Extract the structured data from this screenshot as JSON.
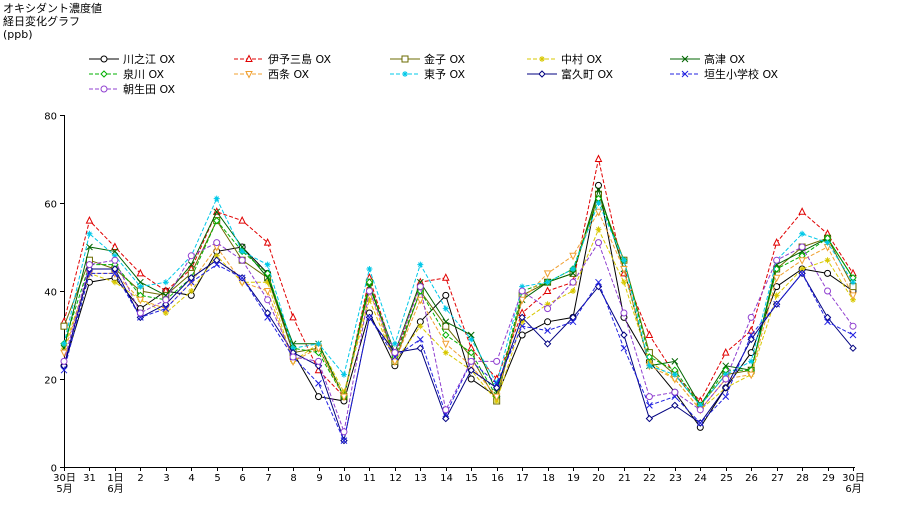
{
  "chart_data": {
    "type": "line",
    "title": "オキシダント濃度値",
    "subtitle": "経日変化グラフ",
    "ylabel": "(ppb)",
    "xlabel": "",
    "ylim": [
      0,
      80
    ],
    "yticks": [
      0,
      20,
      40,
      60,
      80
    ],
    "grid": false,
    "legend_position": "top",
    "categories": [
      "30日\n5月",
      "31",
      "1日\n6月",
      "2",
      "3",
      "4",
      "5",
      "6",
      "7",
      "8",
      "9",
      "10",
      "11",
      "12",
      "13",
      "14",
      "15",
      "16",
      "17",
      "18",
      "19",
      "20",
      "21",
      "22",
      "23",
      "24",
      "25",
      "26",
      "27",
      "28",
      "29",
      "30日\n6月"
    ],
    "series": [
      {
        "name": "川之江 OX",
        "color": "#000000",
        "marker": "circle",
        "dash": "solid",
        "values": [
          23,
          42,
          43,
          36,
          40,
          39,
          49,
          50,
          44,
          26,
          16,
          15,
          35,
          23,
          33,
          39,
          20,
          16,
          30,
          33,
          34,
          64,
          34,
          24,
          17,
          9,
          18,
          26,
          41,
          45,
          44,
          40
        ]
      },
      {
        "name": "伊予三島 OX",
        "color": "#e00000",
        "marker": "triangle",
        "dash": "dash",
        "values": [
          33,
          56,
          50,
          44,
          40,
          45,
          58,
          56,
          51,
          34,
          22,
          16,
          43,
          25,
          42,
          43,
          27,
          20,
          35,
          40,
          42,
          70,
          44,
          30,
          21,
          15,
          26,
          31,
          51,
          58,
          53,
          44
        ]
      },
      {
        "name": "金子 OX",
        "color": "#6b6b00",
        "marker": "square",
        "dash": "solid",
        "values": [
          32,
          47,
          45,
          40,
          39,
          44,
          56,
          47,
          43,
          26,
          27,
          16,
          42,
          24,
          40,
          32,
          25,
          15,
          39,
          42,
          44,
          62,
          47,
          26,
          21,
          14,
          21,
          22,
          45,
          50,
          52,
          41
        ]
      },
      {
        "name": "中村 OX",
        "color": "#d8c800",
        "marker": "star",
        "dash": "dash",
        "values": [
          27,
          44,
          42,
          38,
          35,
          40,
          48,
          42,
          42,
          24,
          28,
          17,
          38,
          24,
          32,
          26,
          22,
          15,
          33,
          37,
          40,
          54,
          42,
          24,
          20,
          13,
          18,
          21,
          39,
          45,
          47,
          38
        ]
      },
      {
        "name": "高津 OX",
        "color": "#006400",
        "marker": "x",
        "dash": "solid",
        "values": [
          27,
          50,
          49,
          42,
          39,
          46,
          58,
          50,
          43,
          28,
          28,
          16,
          41,
          26,
          42,
          33,
          30,
          17,
          38,
          42,
          44,
          63,
          45,
          23,
          24,
          14,
          23,
          22,
          46,
          49,
          52,
          43
        ]
      },
      {
        "name": "泉川 OX",
        "color": "#00b000",
        "marker": "diamond",
        "dash": "dash",
        "values": [
          28,
          46,
          46,
          39,
          38,
          43,
          56,
          49,
          44,
          27,
          26,
          16,
          42,
          25,
          40,
          30,
          26,
          16,
          40,
          42,
          45,
          61,
          47,
          25,
          22,
          14,
          22,
          22,
          45,
          48,
          52,
          43
        ]
      },
      {
        "name": "西条 OX",
        "color": "#f0a030",
        "marker": "triangle-down",
        "dash": "dash",
        "values": [
          26,
          44,
          44,
          38,
          36,
          42,
          50,
          42,
          40,
          24,
          27,
          16,
          40,
          24,
          38,
          28,
          23,
          16,
          38,
          44,
          48,
          58,
          45,
          23,
          20,
          13,
          20,
          21,
          43,
          47,
          50,
          39
        ]
      },
      {
        "name": "東予 OX",
        "color": "#00c8e8",
        "marker": "star",
        "dash": "dash",
        "values": [
          28,
          53,
          48,
          41,
          42,
          48,
          61,
          49,
          46,
          27,
          28,
          21,
          45,
          28,
          46,
          36,
          29,
          19,
          41,
          42,
          45,
          60,
          47,
          23,
          21,
          14,
          21,
          24,
          47,
          53,
          51,
          42
        ]
      },
      {
        "name": "富久町 OX",
        "color": "#000080",
        "marker": "diamond",
        "dash": "solid",
        "values": [
          23,
          45,
          45,
          34,
          37,
          43,
          47,
          43,
          35,
          26,
          23,
          6,
          34,
          26,
          27,
          11,
          22,
          18,
          34,
          28,
          34,
          41,
          30,
          11,
          14,
          10,
          18,
          29,
          37,
          44,
          34,
          27
        ]
      },
      {
        "name": "垣生小学校 OX",
        "color": "#2020e0",
        "marker": "x",
        "dash": "dash",
        "values": [
          22,
          44,
          44,
          34,
          36,
          42,
          46,
          43,
          34,
          25,
          19,
          6,
          34,
          25,
          29,
          12,
          24,
          19,
          32,
          31,
          33,
          42,
          27,
          14,
          16,
          10,
          16,
          30,
          37,
          44,
          33,
          30
        ]
      },
      {
        "name": "朝生田 OX",
        "color": "#9040d0",
        "marker": "circle",
        "dash": "dash",
        "values": [
          24,
          46,
          47,
          35,
          38,
          48,
          51,
          47,
          38,
          25,
          24,
          8,
          40,
          26,
          41,
          13,
          24,
          24,
          40,
          36,
          42,
          51,
          35,
          16,
          17,
          13,
          20,
          34,
          47,
          50,
          40,
          32
        ]
      }
    ]
  }
}
